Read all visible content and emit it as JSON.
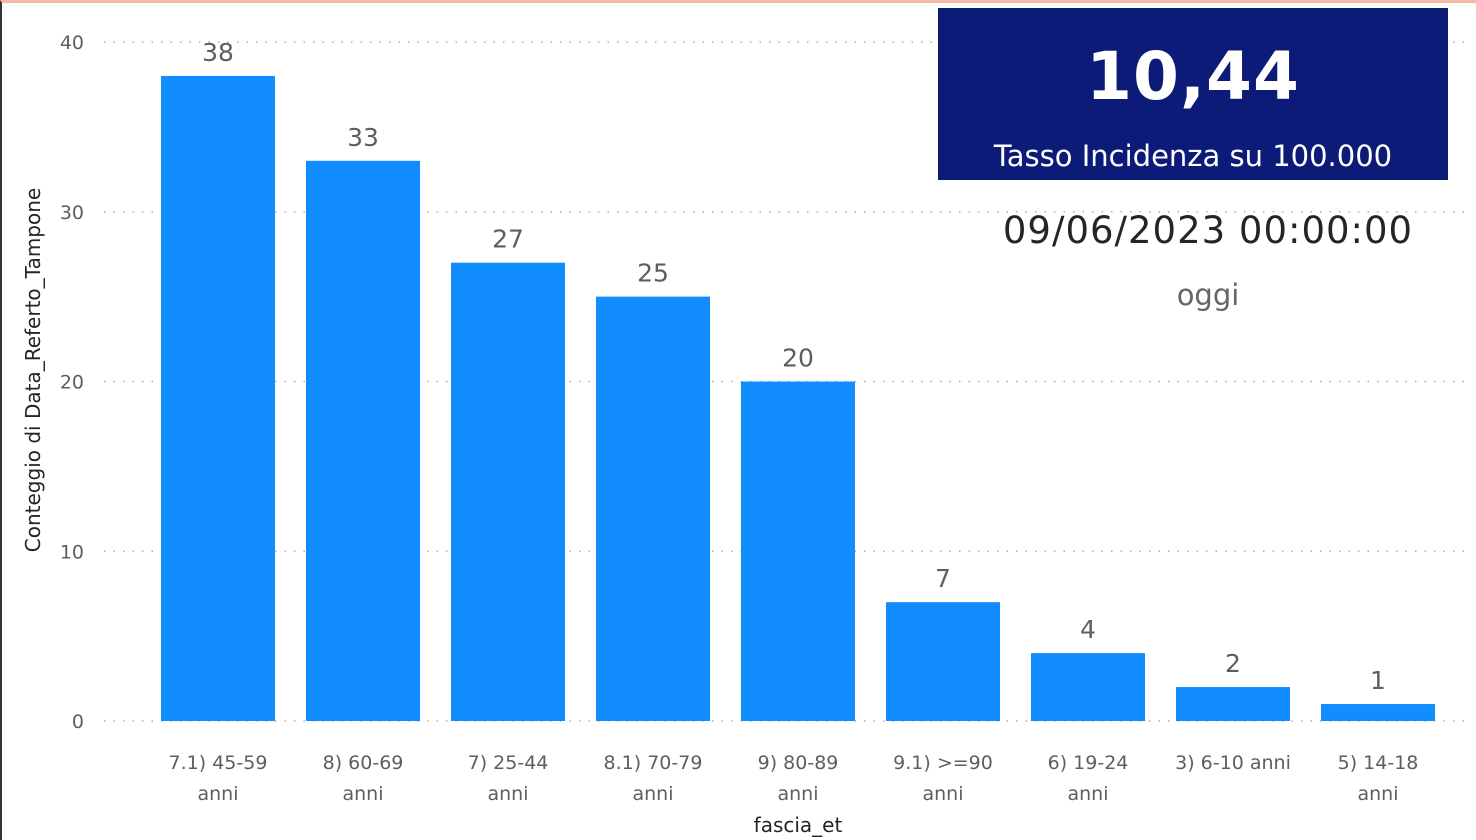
{
  "kpi": {
    "value": "10,44",
    "label": "Tasso Incidenza su 100.000"
  },
  "date_card": {
    "value": "09/06/2023 00:00:00",
    "label": "oggi"
  },
  "colors": {
    "bar": "#118dff",
    "kpi_background": "#0c1a78",
    "top_border": "#f4b8a4"
  },
  "chart_data": {
    "type": "bar",
    "title": "",
    "xlabel": "fascia_et",
    "ylabel": "Conteggio di Data_Referto_Tampone",
    "ylim": [
      0,
      40
    ],
    "yticks": [
      0,
      10,
      20,
      30,
      40
    ],
    "grid": true,
    "categories": [
      [
        "7.1) 45-59",
        "anni"
      ],
      [
        "8) 60-69",
        "anni"
      ],
      [
        "7) 25-44",
        "anni"
      ],
      [
        "8.1) 70-79",
        "anni"
      ],
      [
        "9) 80-89",
        "anni"
      ],
      [
        "9.1) >=90",
        "anni"
      ],
      [
        "6) 19-24",
        "anni"
      ],
      [
        "3) 6-10 anni"
      ],
      [
        "5) 14-18",
        "anni"
      ]
    ],
    "values": [
      38,
      33,
      27,
      25,
      20,
      7,
      4,
      2,
      1
    ]
  }
}
